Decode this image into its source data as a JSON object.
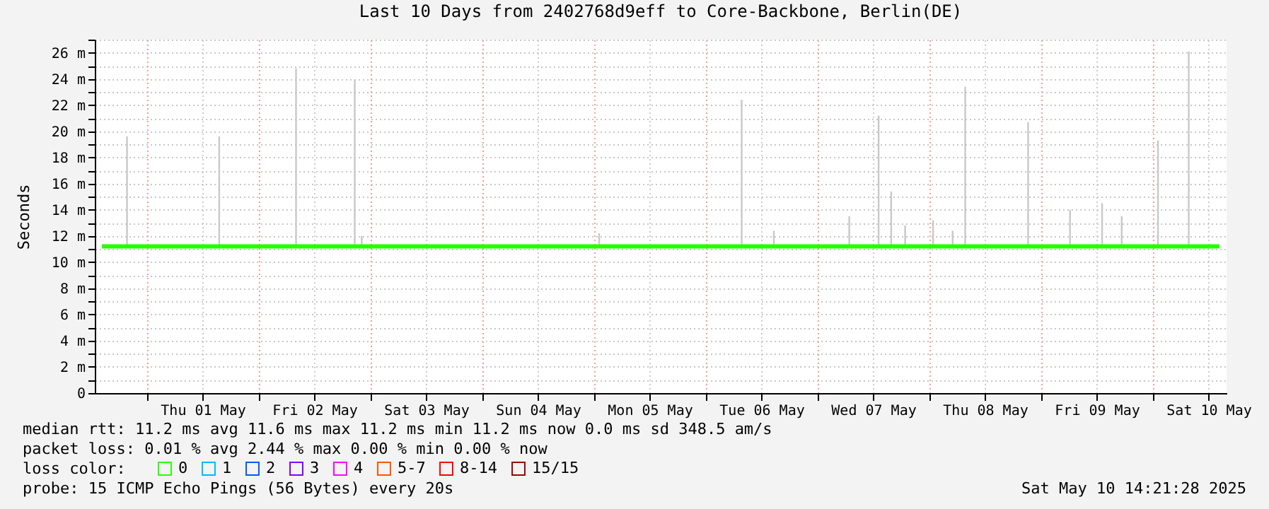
{
  "chart_data": {
    "type": "line",
    "title": "Last 10 Days from 2402768d9eff to Core-Backbone, Berlin(DE)",
    "ylabel": "Seconds",
    "legend_title": "loss color:",
    "legend": "bottom",
    "grid": true,
    "x": [
      "2025-04-30T14:21",
      "2025-05-10T14:21"
    ],
    "xlim": [
      "2025-04-30T14:21",
      "2025-05-10T14:21"
    ],
    "xticks": [
      {
        "value": "2025-05-01T00:00",
        "label": null
      },
      {
        "value": "2025-05-01T12:00",
        "label": "Thu 01 May"
      },
      {
        "value": "2025-05-02T00:00",
        "label": null
      },
      {
        "value": "2025-05-02T12:00",
        "label": "Fri 02 May"
      },
      {
        "value": "2025-05-03T00:00",
        "label": null
      },
      {
        "value": "2025-05-03T12:00",
        "label": "Sat 03 May"
      },
      {
        "value": "2025-05-04T00:00",
        "label": null
      },
      {
        "value": "2025-05-04T12:00",
        "label": "Sun 04 May"
      },
      {
        "value": "2025-05-05T00:00",
        "label": null
      },
      {
        "value": "2025-05-05T12:00",
        "label": "Mon 05 May"
      },
      {
        "value": "2025-05-06T00:00",
        "label": null
      },
      {
        "value": "2025-05-06T12:00",
        "label": "Tue 06 May"
      },
      {
        "value": "2025-05-07T00:00",
        "label": null
      },
      {
        "value": "2025-05-07T12:00",
        "label": "Wed 07 May"
      },
      {
        "value": "2025-05-08T00:00",
        "label": null
      },
      {
        "value": "2025-05-08T12:00",
        "label": "Thu 08 May"
      },
      {
        "value": "2025-05-09T00:00",
        "label": null
      },
      {
        "value": "2025-05-09T12:00",
        "label": "Fri 09 May"
      },
      {
        "value": "2025-05-10T00:00",
        "label": null
      },
      {
        "value": "2025-05-10T12:00",
        "label": "Sat 10 May"
      }
    ],
    "ylim": [
      0,
      27
    ],
    "yticks": [
      0,
      {
        "value": 1,
        "label": null
      },
      {
        "value": 2,
        "label": "2 m"
      },
      {
        "value": 3,
        "label": null
      },
      {
        "value": 4,
        "label": "4 m"
      },
      {
        "value": 5,
        "label": null
      },
      {
        "value": 6,
        "label": "6 m"
      },
      {
        "value": 7,
        "label": null
      },
      {
        "value": 8,
        "label": "8 m"
      },
      {
        "value": 9,
        "label": null
      },
      {
        "value": 10,
        "label": "10 m"
      },
      {
        "value": 11,
        "label": null
      },
      {
        "value": 12,
        "label": "12 m"
      },
      {
        "value": 13,
        "label": null
      },
      {
        "value": 14,
        "label": "14 m"
      },
      {
        "value": 15,
        "label": null
      },
      {
        "value": 16,
        "label": "16 m"
      },
      {
        "value": 17,
        "label": null
      },
      {
        "value": 18,
        "label": "18 m"
      },
      {
        "value": 19,
        "label": null
      },
      {
        "value": 20,
        "label": "20 m"
      },
      {
        "value": 21,
        "label": null
      },
      {
        "value": 22,
        "label": "22 m"
      },
      {
        "value": 23,
        "label": null
      },
      {
        "value": 24,
        "label": "24 m"
      },
      {
        "value": 25,
        "label": null
      },
      {
        "value": 26,
        "label": "26 m"
      },
      {
        "value": 27,
        "label": null
      }
    ],
    "series": [
      {
        "type": "bar",
        "color": "#c8c8c8",
        "x": [
          "2025-04-30T19:45",
          "2025-05-01T15:33",
          "2025-05-02T08:03",
          "2025-05-02T20:39",
          "2025-05-02T22:09",
          "2025-05-05T01:09",
          "2025-05-06T07:45",
          "2025-05-06T14:39",
          "2025-05-07T06:51",
          "2025-05-07T13:09",
          "2025-05-07T15:51",
          "2025-05-07T18:51",
          "2025-05-08T00:51",
          "2025-05-08T05:03",
          "2025-05-08T07:45",
          "2025-05-08T21:15",
          "2025-05-09T06:15",
          "2025-05-09T13:09",
          "2025-05-09T17:21",
          "2025-05-10T01:09",
          "2025-05-10T07:45"
        ],
        "base": [
          11.2,
          11.2,
          11.2,
          11.2,
          11.2,
          11.2,
          11.2,
          11.2,
          11.2,
          11.2,
          11.2,
          11.2,
          11.2,
          11.2,
          11.2,
          11.2,
          11.2,
          11.2,
          11.2,
          11.2,
          11.2
        ],
        "values": [
          8.4,
          8.4,
          13.6,
          12.7,
          0.8,
          1.0,
          11.2,
          1.2,
          2.3,
          10.0,
          4.2,
          1.6,
          2.0,
          1.2,
          12.2,
          9.5,
          2.8,
          3.3,
          2.3,
          8.1,
          14.9
        ]
      },
      {
        "name": "0",
        "color": "#26ff00",
        "values": [
          11.2,
          11.2
        ]
      },
      {
        "name": "1",
        "color": "#00b8ff",
        "values": [
          null,
          null
        ]
      },
      {
        "name": "2",
        "color": "#0059ff",
        "values": [
          null,
          null
        ]
      },
      {
        "name": "3",
        "color": "#7e00ff",
        "values": [
          null,
          null
        ]
      },
      {
        "name": "4",
        "color": "#ff00fe",
        "values": [
          null,
          null
        ]
      },
      {
        "name": "5-7",
        "color": "#ff5500",
        "values": [
          null,
          null
        ]
      },
      {
        "name": "8-14",
        "color": "#ff0000",
        "values": [
          null,
          null
        ]
      },
      {
        "name": "15/15",
        "color": "#a10000",
        "values": [
          null,
          null
        ]
      }
    ],
    "annotations": [
      "median rtt:  11.2 ms avg  11.6 ms max  11.2 ms min  11.2 ms now  0.0 ms sd  348.5   am/s",
      "packet loss: 0.01 % avg  2.44 % max  0.00 % min  0.00 % now",
      "probe:       15 ICMP Echo Pings (56 Bytes) every 20s",
      "Sat May 10 14:21:28 2025"
    ]
  }
}
